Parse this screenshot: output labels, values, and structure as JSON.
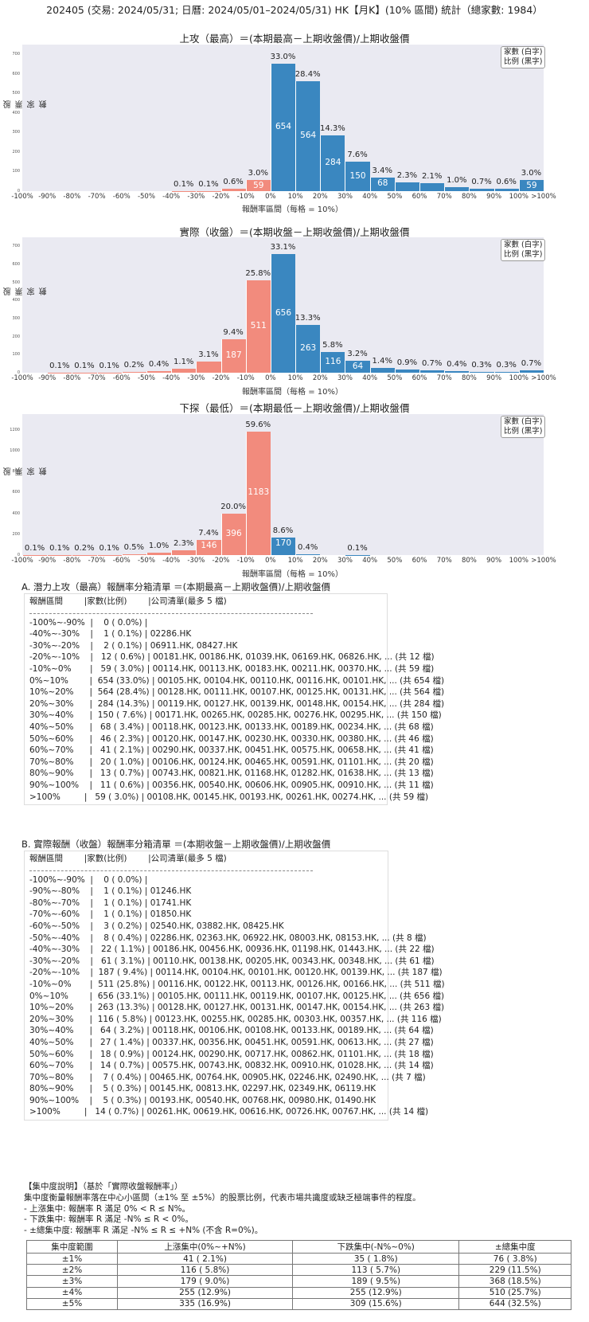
{
  "header": {
    "title": "202405 (交易: 2024/05/31; 日曆: 2024/05/01–2024/05/31) HK【月K】(10% 區間) 統計（總家數: 1984）"
  },
  "legend": {
    "line1": "家數 (白字)",
    "line2": "比例 (黑字)"
  },
  "colors": {
    "positive": "#3a87c0",
    "negative": "#f28b7d",
    "plot_bg": "#eaeaf2"
  },
  "x_ticks": [
    "-100%",
    "-90%",
    "-80%",
    "-70%",
    "-60%",
    "-50%",
    "-40%",
    "-30%",
    "-20%",
    "-10%",
    "0%",
    "10%",
    "20%",
    "30%",
    "40%",
    "50%",
    "60%",
    "70%",
    "80%",
    "90%",
    "100%",
    ">100%"
  ],
  "chart_data": [
    {
      "type": "bar",
      "title": "上攻（最高）＝(本期最高－上期收盤價)/上期收盤價",
      "xlabel": "報酬率區間（每格 = 10%）",
      "ylabel": "股票家數",
      "ylim": [
        0,
        750
      ],
      "yticks": [
        0,
        100,
        200,
        300,
        400,
        500,
        600,
        700
      ],
      "categories": [
        "-100%~-90%",
        "-90%~-80%",
        "-80%~-70%",
        "-70%~-60%",
        "-60%~-50%",
        "-50%~-40%",
        "-40%~-30%",
        "-30%~-20%",
        "-20%~-10%",
        "-10%~0%",
        "0%~10%",
        "10%~20%",
        "20%~30%",
        "30%~40%",
        "40%~50%",
        "50%~60%",
        "60%~70%",
        "70%~80%",
        "80%~90%",
        "90%~100%",
        ">100%"
      ],
      "values": [
        0,
        0,
        0,
        0,
        0,
        0,
        1,
        2,
        12,
        59,
        654,
        564,
        284,
        150,
        68,
        46,
        41,
        20,
        13,
        11,
        59
      ],
      "percent_labels": [
        "",
        "",
        "",
        "",
        "",
        "",
        "0.1%",
        "0.1%",
        "0.6%",
        "3.0%",
        "33.0%",
        "28.4%",
        "14.3%",
        "7.6%",
        "3.4%",
        "2.3%",
        "2.1%",
        "1.0%",
        "0.7%",
        "0.6%",
        "3.0%"
      ],
      "legend": [
        "家數 (白字)",
        "比例 (黑字)"
      ],
      "legend_position": "upper right",
      "grid": false
    },
    {
      "type": "bar",
      "title": "實際（收盤）＝(本期收盤－上期收盤價)/上期收盤價",
      "xlabel": "報酬率區間（每格 = 10%）",
      "ylabel": "股票家數",
      "ylim": [
        0,
        750
      ],
      "yticks": [
        0,
        100,
        200,
        300,
        400,
        500,
        600,
        700
      ],
      "categories": [
        "-100%~-90%",
        "-90%~-80%",
        "-80%~-70%",
        "-70%~-60%",
        "-60%~-50%",
        "-50%~-40%",
        "-40%~-30%",
        "-30%~-20%",
        "-20%~-10%",
        "-10%~0%",
        "0%~10%",
        "10%~20%",
        "20%~30%",
        "30%~40%",
        "40%~50%",
        "50%~60%",
        "60%~70%",
        "70%~80%",
        "80%~90%",
        "90%~100%",
        ">100%"
      ],
      "values": [
        0,
        1,
        1,
        1,
        3,
        8,
        22,
        61,
        187,
        511,
        656,
        263,
        116,
        64,
        27,
        18,
        14,
        7,
        5,
        5,
        14
      ],
      "percent_labels": [
        "",
        "0.1%",
        "0.1%",
        "0.1%",
        "0.2%",
        "0.4%",
        "1.1%",
        "3.1%",
        "9.4%",
        "25.8%",
        "33.1%",
        "13.3%",
        "5.8%",
        "3.2%",
        "1.4%",
        "0.9%",
        "0.7%",
        "0.4%",
        "0.3%",
        "0.3%",
        "0.7%"
      ],
      "legend": [
        "家數 (白字)",
        "比例 (黑字)"
      ],
      "legend_position": "upper right",
      "grid": false
    },
    {
      "type": "bar",
      "title": "下探（最低）＝(本期最低－上期收盤價)/上期收盤價",
      "xlabel": "報酬率區間（每格 = 10%）",
      "ylabel": "股票家數",
      "ylim": [
        0,
        1350
      ],
      "yticks": [
        0,
        200,
        400,
        600,
        800,
        1000,
        1200
      ],
      "categories": [
        "-100%~-90%",
        "-90%~-80%",
        "-80%~-70%",
        "-70%~-60%",
        "-60%~-50%",
        "-50%~-40%",
        "-40%~-30%",
        "-30%~-20%",
        "-20%~-10%",
        "-10%~0%",
        "0%~10%",
        "10%~20%",
        "20%~30%",
        "30%~40%",
        "40%~50%",
        "50%~60%",
        "60%~70%",
        "70%~80%",
        "80%~90%",
        "90%~100%",
        ">100%"
      ],
      "values": [
        1,
        1,
        3,
        1,
        9,
        20,
        45,
        146,
        396,
        1183,
        170,
        8,
        0,
        1,
        0,
        0,
        0,
        0,
        0,
        0,
        0
      ],
      "percent_labels": [
        "0.1%",
        "0.1%",
        "0.2%",
        "0.1%",
        "0.5%",
        "1.0%",
        "2.3%",
        "7.4%",
        "20.0%",
        "59.6%",
        "8.6%",
        "0.4%",
        "",
        "0.1%",
        "",
        "",
        "",
        "",
        "",
        "",
        ""
      ],
      "legend": [
        "家數 (白字)",
        "比例 (黑字)"
      ],
      "legend_position": "upper right",
      "grid": false
    }
  ],
  "section_a": {
    "title": "A. 潛力上攻（最高）報酬率分箱清單 ＝(本期最高－上期收盤價)/上期收盤價",
    "header": "報酬區間        |家數(比例)        |公司清單(最多 5 檔)",
    "rows": [
      "-100%~-90%  |    0 ( 0.0%) |",
      "-40%~-30%    |    1 ( 0.1%) | 02286.HK",
      "-30%~-20%    |    2 ( 0.1%) | 06911.HK, 08427.HK",
      "-20%~-10%    |   12 ( 0.6%) | 00181.HK, 00186.HK, 01039.HK, 06169.HK, 06826.HK, ... (共 12 檔)",
      "-10%~0%       |   59 ( 3.0%) | 00114.HK, 00113.HK, 00183.HK, 00211.HK, 00370.HK, ... (共 59 檔)",
      "0%~10%        |  654 (33.0%) | 00105.HK, 00104.HK, 00110.HK, 00116.HK, 00101.HK, ... (共 654 檔)",
      "10%~20%      |  564 (28.4%) | 00128.HK, 00111.HK, 00107.HK, 00125.HK, 00131.HK, ... (共 564 檔)",
      "20%~30%      |  284 (14.3%) | 00119.HK, 00127.HK, 00139.HK, 00148.HK, 00154.HK, ... (共 284 檔)",
      "30%~40%      |  150 ( 7.6%) | 00171.HK, 00265.HK, 00285.HK, 00276.HK, 00295.HK, ... (共 150 檔)",
      "40%~50%      |   68 ( 3.4%) | 00118.HK, 00123.HK, 00133.HK, 00189.HK, 00234.HK, ... (共 68 檔)",
      "50%~60%      |   46 ( 2.3%) | 00120.HK, 00147.HK, 00230.HK, 00330.HK, 00380.HK, ... (共 46 檔)",
      "60%~70%      |   41 ( 2.1%) | 00290.HK, 00337.HK, 00451.HK, 00575.HK, 00658.HK, ... (共 41 檔)",
      "70%~80%      |   20 ( 1.0%) | 00106.HK, 00124.HK, 00465.HK, 00591.HK, 01101.HK, ... (共 20 檔)",
      "80%~90%      |   13 ( 0.7%) | 00743.HK, 00821.HK, 01168.HK, 01282.HK, 01638.HK, ... (共 13 檔)",
      "90%~100%    |   11 ( 0.6%) | 00356.HK, 00540.HK, 00606.HK, 00905.HK, 00910.HK, ... (共 11 檔)",
      ">100%         |   59 ( 3.0%) | 00108.HK, 00145.HK, 00193.HK, 00261.HK, 00274.HK, ... (共 59 檔)"
    ]
  },
  "section_b": {
    "title": "B. 實際報酬（收盤）報酬率分箱清單 ＝(本期收盤－上期收盤價)/上期收盤價",
    "header": "報酬區間        |家數(比例)        |公司清單(最多 5 檔)",
    "rows": [
      "-100%~-90%  |    0 ( 0.0%) |",
      "-90%~-80%    |    1 ( 0.1%) | 01246.HK",
      "-80%~-70%    |    1 ( 0.1%) | 01741.HK",
      "-70%~-60%    |    1 ( 0.1%) | 01850.HK",
      "-60%~-50%    |    3 ( 0.2%) | 02540.HK, 03882.HK, 08425.HK",
      "-50%~-40%    |    8 ( 0.4%) | 02286.HK, 02363.HK, 06922.HK, 08003.HK, 08153.HK, ... (共 8 檔)",
      "-40%~-30%    |   22 ( 1.1%) | 00186.HK, 00456.HK, 00936.HK, 01198.HK, 01443.HK, ... (共 22 檔)",
      "-30%~-20%    |   61 ( 3.1%) | 00110.HK, 00138.HK, 00205.HK, 00343.HK, 00348.HK, ... (共 61 檔)",
      "-20%~-10%    |  187 ( 9.4%) | 00114.HK, 00104.HK, 00101.HK, 00120.HK, 00139.HK, ... (共 187 檔)",
      "-10%~0%       |  511 (25.8%) | 00116.HK, 00122.HK, 00113.HK, 00126.HK, 00166.HK, ... (共 511 檔)",
      "0%~10%        |  656 (33.1%) | 00105.HK, 00111.HK, 00119.HK, 00107.HK, 00125.HK, ... (共 656 檔)",
      "10%~20%      |  263 (13.3%) | 00128.HK, 00127.HK, 00131.HK, 00147.HK, 00154.HK, ... (共 263 檔)",
      "20%~30%      |  116 ( 5.8%) | 00123.HK, 00255.HK, 00285.HK, 00303.HK, 00357.HK, ... (共 116 檔)",
      "30%~40%      |   64 ( 3.2%) | 00118.HK, 00106.HK, 00108.HK, 00133.HK, 00189.HK, ... (共 64 檔)",
      "40%~50%      |   27 ( 1.4%) | 00337.HK, 00356.HK, 00451.HK, 00591.HK, 00613.HK, ... (共 27 檔)",
      "50%~60%      |   18 ( 0.9%) | 00124.HK, 00290.HK, 00717.HK, 00862.HK, 01101.HK, ... (共 18 檔)",
      "60%~70%      |   14 ( 0.7%) | 00575.HK, 00743.HK, 00832.HK, 00910.HK, 01028.HK, ... (共 14 檔)",
      "70%~80%      |    7 ( 0.4%) | 00465.HK, 00764.HK, 00905.HK, 02246.HK, 02490.HK, ... (共 7 檔)",
      "80%~90%      |    5 ( 0.3%) | 00145.HK, 00813.HK, 02297.HK, 02349.HK, 06119.HK",
      "90%~100%    |    5 ( 0.3%) | 00193.HK, 00540.HK, 00768.HK, 00980.HK, 01490.HK",
      ">100%         |   14 ( 0.7%) | 00261.HK, 00619.HK, 00616.HK, 00726.HK, 00767.HK, ... (共 14 檔)"
    ]
  },
  "notes": {
    "heading": "【集中度說明】（基於「實際收盤報酬率」）",
    "desc": "集中度衡量報酬率落在中心小區間（±1% 至 ±5%）的股票比例，代表市場共識度或缺乏極端事件的程度。",
    "up": " - 上漲集中: 報酬率 R 滿足 0% < R ≤ N%。",
    "down": " - 下跌集中: 報酬率 R 滿足 -N% ≤ R < 0%。",
    "total": " - ±總集中度: 報酬率 R 滿足 -N% ≤ R ≤ +N% (不含 R=0%)。"
  },
  "concentration_table": {
    "headers": [
      "集中度範圍",
      "上漲集中(0%~+N%)",
      "下跌集中(-N%~0%)",
      "±總集中度"
    ],
    "rows": [
      [
        "±1%",
        "41 ( 2.1%)",
        "35 ( 1.8%)",
        "76 ( 3.8%)"
      ],
      [
        "±2%",
        "116 ( 5.8%)",
        "113 ( 5.7%)",
        "229 (11.5%)"
      ],
      [
        "±3%",
        "179 ( 9.0%)",
        "189 ( 9.5%)",
        "368 (18.5%)"
      ],
      [
        "±4%",
        "255 (12.9%)",
        "255 (12.9%)",
        "510 (25.7%)"
      ],
      [
        "±5%",
        "335 (16.9%)",
        "309 (15.6%)",
        "644 (32.5%)"
      ]
    ]
  }
}
